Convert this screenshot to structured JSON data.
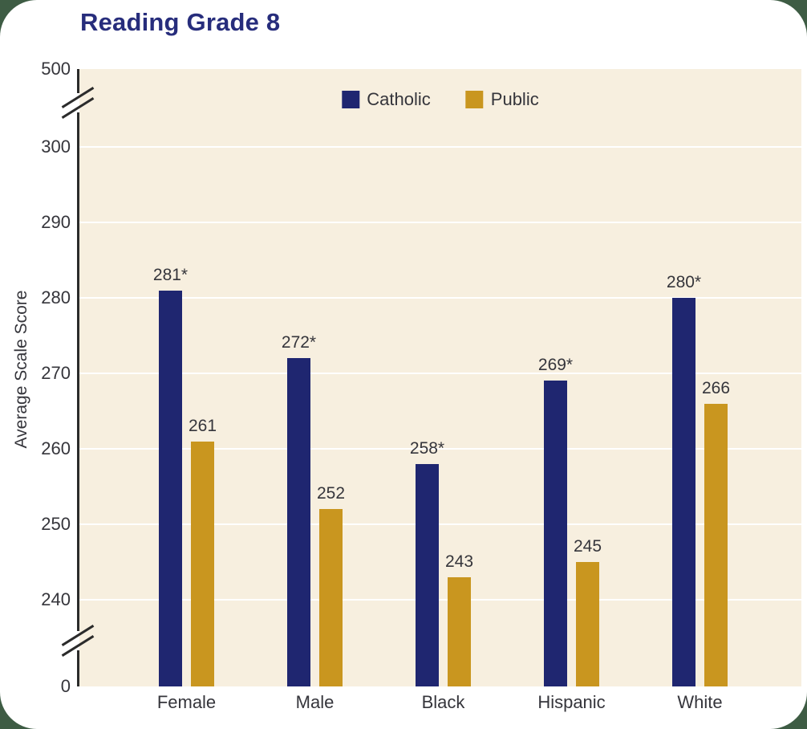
{
  "chart_data": {
    "type": "bar",
    "title": "Reading Grade 8",
    "ylabel": "Average Scale Score",
    "categories": [
      "Female",
      "Male",
      "Black",
      "Hispanic",
      "White"
    ],
    "series": [
      {
        "name": "Catholic",
        "color": "#1f2670",
        "values": [
          281,
          272,
          258,
          269,
          280
        ],
        "labels": [
          "281*",
          "272*",
          "258*",
          "269*",
          "280*"
        ]
      },
      {
        "name": "Public",
        "color": "#c9961f",
        "values": [
          261,
          252,
          243,
          245,
          266
        ],
        "labels": [
          "261",
          "252",
          "243",
          "245",
          "266"
        ]
      }
    ],
    "y_ticks": [
      500,
      300,
      290,
      280,
      270,
      260,
      250,
      240,
      0
    ],
    "gridline_values": [
      300,
      290,
      280,
      270,
      260,
      250,
      240
    ],
    "axis_breaks": "between 0 and 240, and between 300 and 500",
    "legend_position": "top-center inside plot",
    "grid": "horizontal white lines",
    "plot_background": "#f7efdf"
  },
  "colors": {
    "card_background": "#ffffff",
    "page_background": "#3e5c44",
    "title_text": "#272d7c",
    "axis_line": "#2b2b2b",
    "tick_text": "#35353b",
    "gridline": "#ffffff",
    "catholic_bar": "#1f2670",
    "public_bar": "#c9961f"
  }
}
